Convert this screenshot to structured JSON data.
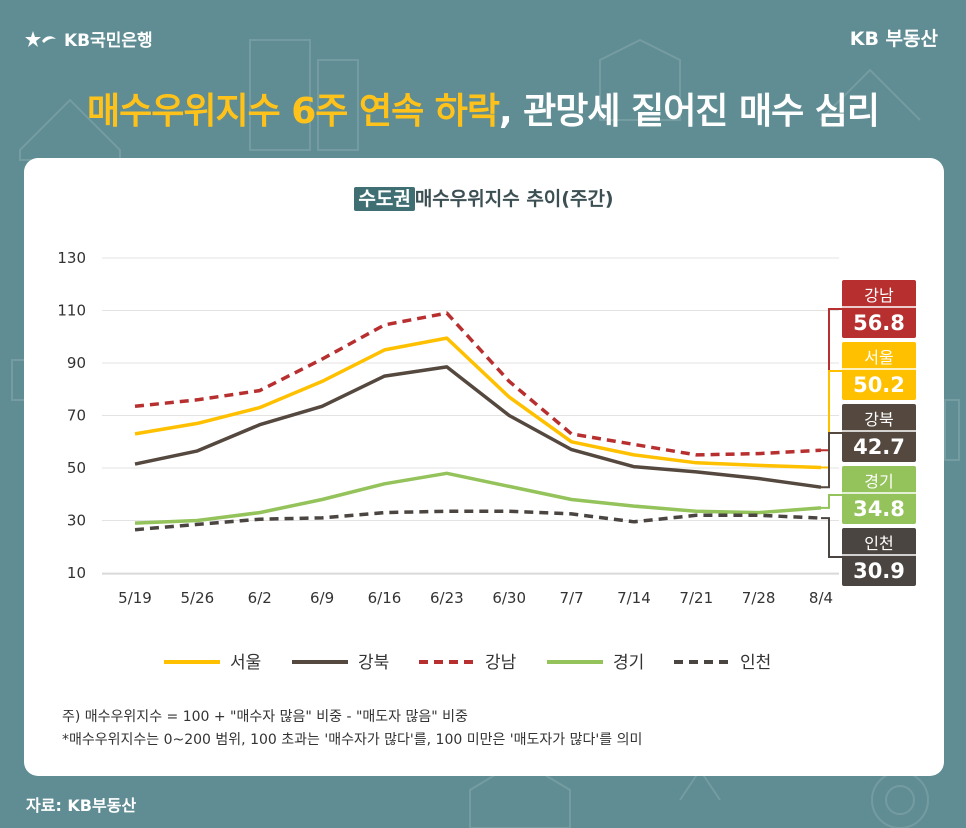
{
  "brand_left": "KB국민은행",
  "brand_right": "KB 부동산",
  "headline": {
    "highlight": "매수우위지수 6주 연속 하락",
    "rest": ", 관망세 짙어진 매수 심리"
  },
  "source": "자료: KB부동산",
  "notes": [
    "주) 매수우위지수 = 100 + \"매수자 많음\" 비중 - \"매도자 많음\" 비중",
    "*매수우위지수는 0~200 범위, 100 초과는 '매수자가 많다'를, 100 미만은 '매도자가 많다'를 의미"
  ],
  "colors": {
    "background": "#5f8d93",
    "seoul": "#ffc000",
    "gangbuk": "#54483f",
    "gangnam": "#b82f2f",
    "gyeonggi": "#93c35a",
    "incheon": "#4b4541"
  },
  "chart_data": {
    "type": "line",
    "title_tag": "수도권",
    "title": "매수우위지수 추이(주간)",
    "categories": [
      "5/19",
      "5/26",
      "6/2",
      "6/9",
      "6/16",
      "6/23",
      "6/30",
      "7/7",
      "7/14",
      "7/21",
      "7/28",
      "8/4"
    ],
    "y_ticks": [
      130,
      110,
      90,
      70,
      50,
      30,
      10
    ],
    "ylim": [
      10,
      130
    ],
    "legend_position": "bottom",
    "series": [
      {
        "name": "서울",
        "style": "solid",
        "color_key": "seoul",
        "values": [
          63,
          67,
          73,
          83,
          95,
          99.5,
          77,
          60,
          55,
          52,
          51,
          50.2
        ]
      },
      {
        "name": "강북",
        "style": "solid",
        "color_key": "gangbuk",
        "values": [
          51.5,
          56.5,
          66.5,
          73.5,
          85,
          88.5,
          70,
          57,
          50.5,
          48.5,
          46,
          42.7
        ]
      },
      {
        "name": "강남",
        "style": "dashed",
        "color_key": "gangnam",
        "values": [
          73.5,
          76,
          79.5,
          91.5,
          104.5,
          109,
          83,
          63,
          59,
          55,
          55.5,
          56.8
        ]
      },
      {
        "name": "경기",
        "style": "solid",
        "color_key": "gyeonggi",
        "values": [
          29,
          30,
          33,
          38,
          44,
          48,
          43,
          38,
          35.5,
          33.5,
          33,
          34.8
        ]
      },
      {
        "name": "인천",
        "style": "dashed",
        "color_key": "incheon",
        "values": [
          26.5,
          28.5,
          30.5,
          31,
          33,
          33.5,
          33.5,
          32.5,
          29.5,
          32,
          32,
          30.9
        ]
      }
    ],
    "end_labels": [
      {
        "name": "강남",
        "value": "56.8"
      },
      {
        "name": "서울",
        "value": "50.2"
      },
      {
        "name": "강북",
        "value": "42.7"
      },
      {
        "name": "경기",
        "value": "34.8"
      },
      {
        "name": "인천",
        "value": "30.9"
      }
    ]
  }
}
